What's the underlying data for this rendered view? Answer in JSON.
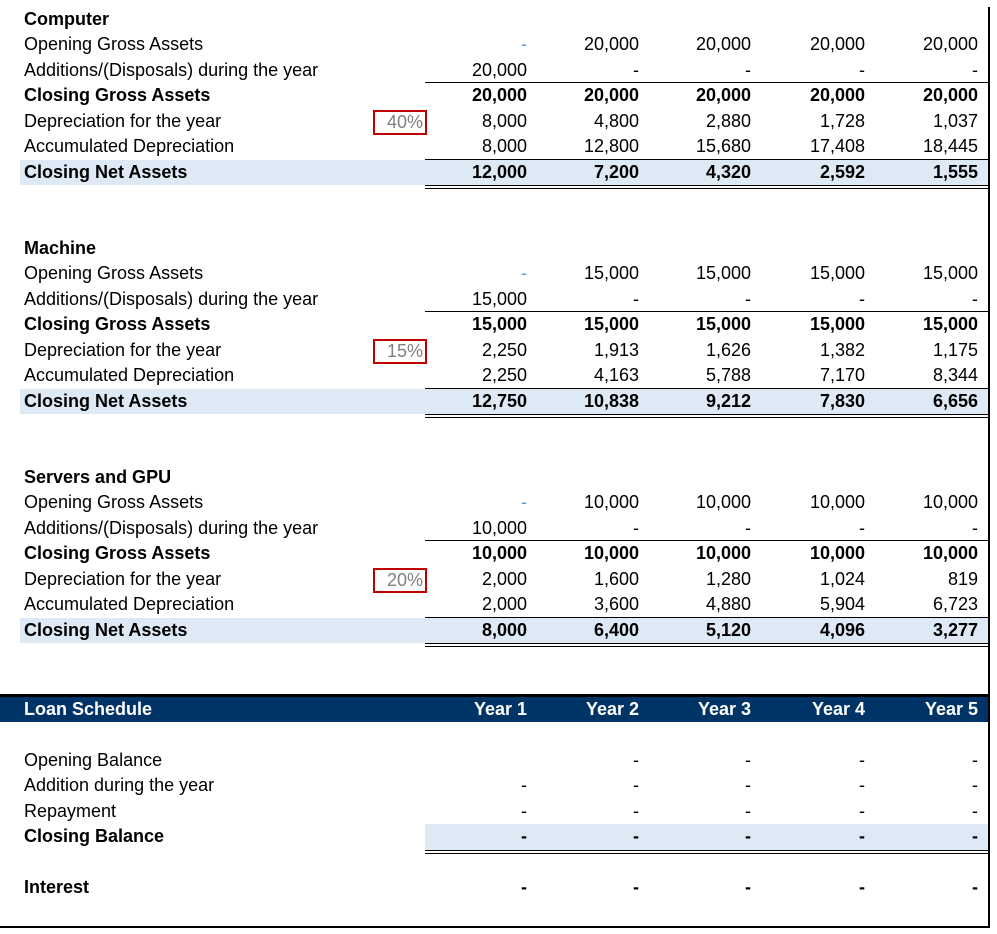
{
  "assets": [
    {
      "name": "Computer",
      "rate": "40%",
      "rows": [
        {
          "label": "Opening Gross Assets",
          "values": [
            "-",
            "20,000",
            "20,000",
            "20,000",
            "20,000"
          ]
        },
        {
          "label": "Additions/(Disposals) during the year",
          "values": [
            "20,000",
            "-",
            "-",
            "-",
            "-"
          ]
        },
        {
          "label": "Closing Gross Assets",
          "values": [
            "20,000",
            "20,000",
            "20,000",
            "20,000",
            "20,000"
          ]
        },
        {
          "label": "Depreciation for the year",
          "values": [
            "8,000",
            "4,800",
            "2,880",
            "1,728",
            "1,037"
          ]
        },
        {
          "label": "Accumulated Depreciation",
          "values": [
            "8,000",
            "12,800",
            "15,680",
            "17,408",
            "18,445"
          ]
        },
        {
          "label": "Closing Net Assets",
          "values": [
            "12,000",
            "7,200",
            "4,320",
            "2,592",
            "1,555"
          ]
        }
      ]
    },
    {
      "name": "Machine",
      "rate": "15%",
      "rows": [
        {
          "label": "Opening Gross Assets",
          "values": [
            "-",
            "15,000",
            "15,000",
            "15,000",
            "15,000"
          ]
        },
        {
          "label": "Additions/(Disposals) during the year",
          "values": [
            "15,000",
            "-",
            "-",
            "-",
            "-"
          ]
        },
        {
          "label": "Closing Gross Assets",
          "values": [
            "15,000",
            "15,000",
            "15,000",
            "15,000",
            "15,000"
          ]
        },
        {
          "label": "Depreciation for the year",
          "values": [
            "2,250",
            "1,913",
            "1,626",
            "1,382",
            "1,175"
          ]
        },
        {
          "label": "Accumulated Depreciation",
          "values": [
            "2,250",
            "4,163",
            "5,788",
            "7,170",
            "8,344"
          ]
        },
        {
          "label": "Closing Net Assets",
          "values": [
            "12,750",
            "10,838",
            "9,212",
            "7,830",
            "6,656"
          ]
        }
      ]
    },
    {
      "name": "Servers and GPU",
      "rate": "20%",
      "rows": [
        {
          "label": "Opening Gross Assets",
          "values": [
            "-",
            "10,000",
            "10,000",
            "10,000",
            "10,000"
          ]
        },
        {
          "label": "Additions/(Disposals) during the year",
          "values": [
            "10,000",
            "-",
            "-",
            "-",
            "-"
          ]
        },
        {
          "label": "Closing Gross Assets",
          "values": [
            "10,000",
            "10,000",
            "10,000",
            "10,000",
            "10,000"
          ]
        },
        {
          "label": "Depreciation for the year",
          "values": [
            "2,000",
            "1,600",
            "1,280",
            "1,024",
            "819"
          ]
        },
        {
          "label": "Accumulated Depreciation",
          "values": [
            "2,000",
            "3,600",
            "4,880",
            "5,904",
            "6,723"
          ]
        },
        {
          "label": "Closing Net Assets",
          "values": [
            "8,000",
            "6,400",
            "5,120",
            "4,096",
            "3,277"
          ]
        }
      ]
    }
  ],
  "loan": {
    "title": "Loan Schedule",
    "years": [
      "Year 1",
      "Year 2",
      "Year 3",
      "Year 4",
      "Year 5"
    ],
    "rows": [
      {
        "label": "Opening Balance",
        "values": [
          "",
          "-",
          "-",
          "-",
          "-"
        ]
      },
      {
        "label": "Addition during the year",
        "values": [
          "-",
          "-",
          "-",
          "-",
          "-"
        ]
      },
      {
        "label": "Repayment",
        "values": [
          "-",
          "-",
          "-",
          "-",
          "-"
        ]
      },
      {
        "label": "Closing Balance",
        "values": [
          "-",
          "-",
          "-",
          "-",
          "-"
        ]
      },
      {
        "label": "Interest",
        "values": [
          "-",
          "-",
          "-",
          "-",
          "-"
        ]
      }
    ]
  },
  "colors": {
    "header": "#003366",
    "highlight": "#dde9f5",
    "rate_border": "#c00000"
  }
}
